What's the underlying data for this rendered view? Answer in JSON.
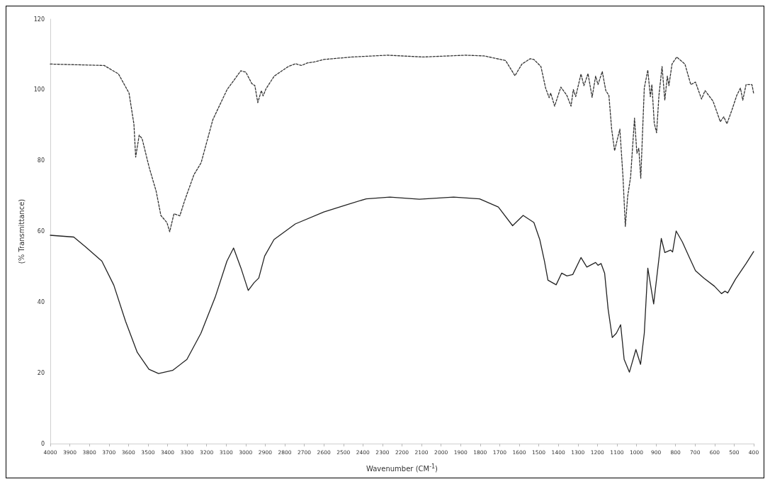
{
  "chart_data": {
    "type": "line",
    "xlabel": "Wavenumber (CM$^{-1}$)",
    "ylabel": "(% Transmittance)",
    "xlim": [
      4000,
      400
    ],
    "ylim": [
      0,
      120
    ],
    "xticks": [
      4000,
      3900,
      3800,
      3700,
      3600,
      3500,
      3400,
      3300,
      3200,
      3100,
      3000,
      2900,
      2800,
      2700,
      2600,
      2500,
      2400,
      2300,
      2200,
      2100,
      2000,
      1900,
      1800,
      1700,
      1600,
      1500,
      1400,
      1300,
      1200,
      1100,
      1000,
      900,
      800,
      700,
      600,
      500,
      400
    ],
    "yticks": [
      0,
      20,
      40,
      60,
      80,
      100,
      120
    ],
    "marker": "none",
    "series": [
      {
        "color": "#333333",
        "line_style": "dashed",
        "x": [
          4000,
          3724,
          3651,
          3597,
          3572,
          3563,
          3545,
          3530,
          3494,
          3458,
          3434,
          3403,
          3389,
          3367,
          3337,
          3313,
          3265,
          3228,
          3168,
          3095,
          3025,
          2999,
          2969,
          2953,
          2938,
          2920,
          2911,
          2896,
          2854,
          2782,
          2745,
          2715,
          2685,
          2649,
          2600,
          2455,
          2274,
          2093,
          1876,
          1779,
          1670,
          1622,
          1586,
          1544,
          1525,
          1489,
          1465,
          1447,
          1439,
          1419,
          1387,
          1356,
          1335,
          1323,
          1311,
          1284,
          1269,
          1248,
          1227,
          1209,
          1197,
          1175,
          1157,
          1141,
          1127,
          1112,
          1097,
          1085,
          1069,
          1057,
          1045,
          1030,
          1010,
          998,
          988,
          978,
          960,
          942,
          929,
          921,
          909,
          897,
          885,
          869,
          855,
          842,
          834,
          818,
          794,
          752,
          722,
          698,
          667,
          649,
          608,
          571,
          553,
          537,
          511,
          487,
          468,
          456,
          439,
          409,
          400
        ],
        "values": [
          107.3,
          106.9,
          104.5,
          99.1,
          90.3,
          81,
          87.2,
          86.2,
          78.1,
          71.3,
          64.5,
          62.5,
          59.9,
          65,
          64.4,
          68.6,
          76,
          79.4,
          91.6,
          100.1,
          105.4,
          105,
          101.8,
          101.2,
          96.4,
          99.8,
          98.3,
          100.3,
          103.9,
          106.6,
          107.4,
          106.9,
          107.6,
          107.9,
          108.6,
          109.3,
          109.8,
          109.3,
          109.8,
          109.6,
          108.3,
          104,
          107.3,
          108.8,
          108.6,
          106.6,
          100.5,
          97.8,
          99.1,
          95.4,
          100.8,
          98.4,
          95.4,
          100.1,
          98.1,
          104.5,
          101.2,
          104.6,
          97.9,
          103.9,
          101.5,
          105.2,
          99.8,
          98.4,
          88.9,
          82.8,
          86.2,
          88.9,
          75.4,
          61.4,
          69.9,
          75.4,
          92,
          82.1,
          83.5,
          75,
          100.5,
          105.6,
          98.1,
          101.5,
          90.6,
          87.9,
          98.4,
          106.6,
          97.1,
          103.9,
          101.2,
          107.3,
          109.3,
          107.3,
          101.5,
          102.2,
          97.4,
          99.8,
          96.8,
          91,
          92.4,
          90.4,
          94.4,
          98.4,
          100.5,
          97.1,
          101.5,
          101.5,
          98.9
        ]
      },
      {
        "color": "#222222",
        "line_style": "solid",
        "x": [
          4000,
          3880,
          3821,
          3736,
          3675,
          3615,
          3555,
          3495,
          3446,
          3374,
          3301,
          3229,
          3156,
          3096,
          3062,
          3024,
          2987,
          2957,
          2933,
          2903,
          2855,
          2746,
          2600,
          2479,
          2383,
          2262,
          2111,
          1936,
          1803,
          1707,
          1634,
          1580,
          1525,
          1495,
          1471,
          1453,
          1411,
          1383,
          1356,
          1326,
          1284,
          1254,
          1209,
          1197,
          1181,
          1163,
          1145,
          1124,
          1103,
          1081,
          1063,
          1036,
          1003,
          979,
          960,
          942,
          912,
          873,
          855,
          825,
          815,
          797,
          765,
          729,
          698,
          655,
          601,
          565,
          547,
          533,
          493,
          439,
          400
        ],
        "values": [
          58.9,
          58.4,
          55.7,
          51.6,
          44.8,
          34.6,
          25.8,
          21,
          19.8,
          20.7,
          23.8,
          31.2,
          41.4,
          51.6,
          55.3,
          49.6,
          43.3,
          45.5,
          46.8,
          53,
          57.7,
          62.1,
          65.5,
          67.6,
          69.2,
          69.7,
          69.1,
          69.7,
          69.2,
          66.9,
          61.6,
          64.5,
          62.5,
          57.7,
          51.6,
          46.2,
          44.9,
          48.2,
          47.4,
          47.8,
          52.6,
          49.9,
          51.2,
          50.4,
          50.9,
          48.2,
          38,
          30,
          31.2,
          33.6,
          23.8,
          20.2,
          26.6,
          22.4,
          31.2,
          49.6,
          39.5,
          58,
          54,
          54.7,
          54.2,
          60.1,
          57,
          52.6,
          48.9,
          46.8,
          44.5,
          42.4,
          43.1,
          42.6,
          46.5,
          50.9,
          54.3
        ]
      }
    ]
  }
}
